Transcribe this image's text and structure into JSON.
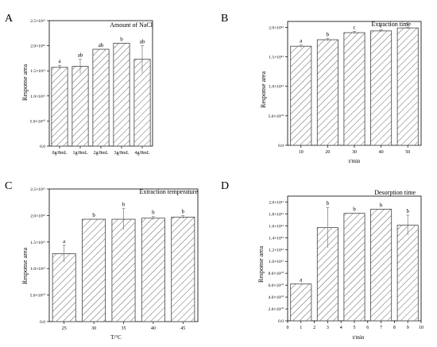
{
  "chart_data": [
    {
      "panel_letter": "A",
      "type": "bar",
      "title": "Amount of NaCl",
      "xlabel": "",
      "ylabel": "Response area",
      "categories": [
        "0g/8mL",
        "1g/8mL",
        "2g/8mL",
        "3g/8mL",
        "4g/8mL"
      ],
      "values": [
        157000000000.0,
        159000000000.0,
        193000000000.0,
        205000000000.0,
        173000000000.0
      ],
      "errors": [
        4000000000.0,
        14000000000.0,
        0.0,
        0.0,
        27000000000.0
      ],
      "letters": [
        "a",
        "ab",
        "ab",
        "b",
        "ab"
      ],
      "ylim": [
        0,
        250000000000.0
      ],
      "y_ticks": [
        0,
        50000000000.0,
        100000000000.0,
        150000000000.0,
        200000000000.0,
        250000000000.0
      ],
      "y_tick_labels": [
        "0.0",
        "5.0×10¹⁰",
        "1.0×10¹¹",
        "1.5×10¹¹",
        "2.0×10¹¹",
        "2.5×10¹¹"
      ],
      "bar_fill": "hatched"
    },
    {
      "panel_letter": "B",
      "type": "bar",
      "title": "Extraction time",
      "xlabel": "t/min",
      "ylabel": "Response area",
      "categories": [
        "10",
        "20",
        "30",
        "40",
        "50"
      ],
      "values": [
        168000000000.0,
        179000000000.0,
        191000000000.0,
        194000000000.0,
        199000000000.0
      ],
      "errors": [
        2000000000.0,
        2000000000.0,
        2000000000.0,
        2000000000.0,
        1000000000.0
      ],
      "letters": [
        "a",
        "b",
        "c",
        "c",
        "c"
      ],
      "ylim": [
        0,
        210000000000.0
      ],
      "y_ticks": [
        0,
        50000000000.0,
        100000000000.0,
        150000000000.0,
        200000000000.0
      ],
      "y_tick_labels": [
        "0.0",
        "5.0×10¹⁰",
        "1.0×10¹¹",
        "1.5×10¹¹",
        "2.0×10¹¹"
      ],
      "bar_fill": "hatched"
    },
    {
      "panel_letter": "C",
      "type": "bar",
      "title": "Extraction temperature",
      "xlabel": "T/°C",
      "ylabel": "Response area",
      "categories": [
        "25",
        "30",
        "35",
        "40",
        "45"
      ],
      "values": [
        128000000000.0,
        193000000000.0,
        193000000000.0,
        195000000000.0,
        197000000000.0
      ],
      "errors": [
        16000000000.0,
        0.0,
        20000000000.0,
        3000000000.0,
        3000000000.0
      ],
      "letters": [
        "a",
        "b",
        "b",
        "b",
        "b"
      ],
      "ylim": [
        0,
        250000000000.0
      ],
      "y_ticks": [
        0,
        50000000000.0,
        100000000000.0,
        150000000000.0,
        200000000000.0,
        250000000000.0
      ],
      "y_tick_labels": [
        "0.0",
        "5.0×10¹⁰",
        "1.0×10¹¹",
        "1.5×10¹¹",
        "2.0×10¹¹",
        "2.5×10¹¹"
      ],
      "bar_fill": "hatched"
    },
    {
      "panel_letter": "D",
      "type": "bar",
      "title": "Desorption time",
      "xlabel": "t/min",
      "ylabel": "Response area",
      "x_values": [
        1,
        3,
        5,
        7,
        9
      ],
      "xlim": [
        0,
        10
      ],
      "x_ticks": [
        0,
        1,
        2,
        3,
        4,
        5,
        6,
        7,
        8,
        9,
        10
      ],
      "values": [
        62000000000.0,
        157000000000.0,
        181000000000.0,
        188000000000.0,
        161000000000.0
      ],
      "errors": [
        0.0,
        34000000000.0,
        0.0,
        0.0,
        17000000000.0
      ],
      "letters": [
        "a",
        "b",
        "b",
        "b",
        "b"
      ],
      "ylim": [
        0,
        210000000000.0
      ],
      "y_ticks": [
        0,
        20000000000.0,
        40000000000.0,
        60000000000.0,
        80000000000.0,
        100000000000.0,
        120000000000.0,
        140000000000.0,
        160000000000.0,
        180000000000.0,
        200000000000.0
      ],
      "y_tick_labels": [
        "0.0",
        "2.0×10¹⁰",
        "4.0×10¹⁰",
        "6.0×10¹⁰",
        "8.0×10¹⁰",
        "1.0×10¹¹",
        "1.2×10¹¹",
        "1.4×10¹¹",
        "1.6×10¹¹",
        "1.8×10¹¹",
        "2.0×10¹¹"
      ],
      "bar_fill": "hatched"
    }
  ]
}
